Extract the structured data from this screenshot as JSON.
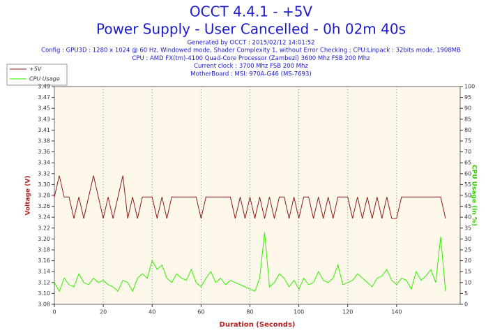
{
  "chart_data": {
    "type": "line",
    "title": "OCCT 4.4.1 - +5V",
    "subtitle": "Power Supply - User Cancelled - 0h 02m 40s",
    "info": [
      "Generated by OCCT : 2015/02/12 14:01:52",
      "Config : GPU3D : 1280 x 1024 @ 60 Hz, Windowed mode, Shader Complexity 1, without Error Checking ; CPU:Linpack : 32bits mode, 1908MB",
      "CPU : AMD FX(tm)-4100 Quad-Core Processor (Zambezi) 3600 Mhz FSB 200 Mhz",
      "Current clock : 3700 Mhz FSB 200 Mhz",
      "MotherBoard : MSI: 970A-G46 (MS-7693)"
    ],
    "x_label": "Duration (Seconds)",
    "y_label": "Voltage (V)",
    "y2_label": "CPU Usage (in %)",
    "x": [
      0,
      2,
      4,
      6,
      8,
      10,
      12,
      14,
      16,
      18,
      20,
      22,
      24,
      26,
      28,
      30,
      32,
      34,
      36,
      38,
      40,
      42,
      44,
      46,
      48,
      50,
      52,
      54,
      56,
      58,
      60,
      62,
      64,
      66,
      68,
      70,
      72,
      74,
      76,
      78,
      80,
      82,
      84,
      86,
      88,
      90,
      92,
      94,
      96,
      98,
      100,
      102,
      104,
      106,
      108,
      110,
      112,
      114,
      116,
      118,
      120,
      122,
      124,
      126,
      128,
      130,
      132,
      134,
      136,
      138,
      140,
      142,
      144,
      146,
      148,
      150,
      152,
      154,
      156,
      158,
      160
    ],
    "series": [
      {
        "name": "+5V",
        "color": "#8b1a1a",
        "axis": "y",
        "values": [
          3.28,
          3.32,
          3.28,
          3.28,
          3.24,
          3.28,
          3.24,
          3.28,
          3.32,
          3.28,
          3.24,
          3.28,
          3.24,
          3.28,
          3.32,
          3.24,
          3.28,
          3.24,
          3.28,
          3.28,
          3.28,
          3.24,
          3.28,
          3.24,
          3.28,
          3.28,
          3.28,
          3.28,
          3.28,
          3.28,
          3.24,
          3.28,
          3.28,
          3.28,
          3.28,
          3.28,
          3.28,
          3.24,
          3.28,
          3.24,
          3.28,
          3.24,
          3.28,
          3.24,
          3.28,
          3.24,
          3.28,
          3.28,
          3.24,
          3.28,
          3.24,
          3.28,
          3.28,
          3.24,
          3.28,
          3.24,
          3.28,
          3.24,
          3.28,
          3.28,
          3.28,
          3.24,
          3.28,
          3.24,
          3.28,
          3.24,
          3.28,
          3.24,
          3.28,
          3.24,
          3.24,
          3.28,
          3.28,
          3.28,
          3.28,
          3.28,
          3.28,
          3.28,
          3.28,
          3.28,
          3.24
        ]
      },
      {
        "name": "CPU Usage",
        "color": "#33ee00",
        "axis": "y2",
        "values": [
          10,
          6,
          12,
          9,
          8,
          14,
          10,
          9,
          12,
          10,
          11,
          9,
          8,
          6,
          11,
          10,
          6,
          12,
          14,
          12,
          20,
          16,
          18,
          12,
          10,
          14,
          12,
          11,
          16,
          10,
          8,
          12,
          15,
          10,
          12,
          9,
          11,
          10,
          9,
          8,
          7,
          6,
          12,
          33,
          8,
          10,
          14,
          12,
          8,
          11,
          7,
          12,
          9,
          10,
          15,
          11,
          10,
          12,
          18,
          9,
          10,
          11,
          14,
          12,
          10,
          8,
          12,
          13,
          16,
          11,
          9,
          12,
          11,
          7,
          15,
          11,
          13,
          16,
          10,
          31,
          6
        ]
      }
    ],
    "xlim": [
      0,
      166
    ],
    "xticks": [
      0,
      20,
      40,
      60,
      80,
      100,
      120,
      140
    ],
    "ylim": [
      3.08,
      3.486
    ],
    "yticks": [
      {
        "value": 3.08,
        "label": "3.08"
      },
      {
        "value": 3.1003,
        "label": "3.10"
      },
      {
        "value": 3.1206,
        "label": "3.12"
      },
      {
        "value": 3.1409,
        "label": "3.14"
      },
      {
        "value": 3.1612,
        "label": "3.16"
      },
      {
        "value": 3.1815,
        "label": "3.18"
      },
      {
        "value": 3.2018,
        "label": "3.20"
      },
      {
        "value": 3.2221,
        "label": "3.22"
      },
      {
        "value": 3.2424,
        "label": "3.24"
      },
      {
        "value": 3.2627,
        "label": "3.26"
      },
      {
        "value": 3.283,
        "label": "3.28"
      },
      {
        "value": 3.3033,
        "label": "3.30"
      },
      {
        "value": 3.3236,
        "label": "3.32"
      },
      {
        "value": 3.3439,
        "label": "3.34"
      },
      {
        "value": 3.3642,
        "label": "3.36"
      },
      {
        "value": 3.3845,
        "label": "3.38"
      },
      {
        "value": 3.4048,
        "label": "3.41"
      },
      {
        "value": 3.4251,
        "label": "3.43"
      },
      {
        "value": 3.4454,
        "label": "3.45"
      },
      {
        "value": 3.4657,
        "label": "3.47"
      },
      {
        "value": 3.486,
        "label": "3.49"
      }
    ],
    "y2lim": [
      0,
      100
    ],
    "y2ticks": [
      0,
      5,
      10,
      15,
      20,
      25,
      30,
      35,
      40,
      45,
      50,
      55,
      60,
      65,
      70,
      75,
      80,
      85,
      90,
      95,
      100
    ],
    "grid": "x"
  }
}
